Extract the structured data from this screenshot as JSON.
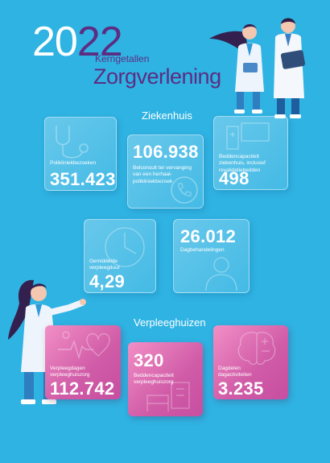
{
  "header": {
    "year_part1": "20",
    "year_part2": "22",
    "subtitle": "Kerngetallen",
    "title": "Zorgverlening"
  },
  "sections": {
    "hospital": "Ziekenhuis",
    "nursing": "Verpleeghuizen"
  },
  "hospital_cards": [
    {
      "label": "Polikliniekbezoeken",
      "value": "351.423",
      "icon": "stethoscope-icon"
    },
    {
      "label": "Belconsult ter vervanging van een herhaal-polikliniekbezoek",
      "value": "106.938",
      "icon": "phone-icon"
    },
    {
      "label": "Beddencapaciteit ziekenhuis, inclusief revalidatiebedden",
      "value": "498",
      "icon": "hospital-bed-icon"
    },
    {
      "label": "Gemiddelde verpleegduur",
      "value": "4,29",
      "icon": "clock-icon"
    },
    {
      "label": "Dagbehandelingen",
      "value": "26.012",
      "icon": "doctor-icon"
    }
  ],
  "nursing_cards": [
    {
      "label": "Verpleegdagen verpleeghuiszorg",
      "value": "112.742",
      "icon": "heartbeat-stethoscope-icon"
    },
    {
      "label": "Beddencapaciteit verpleeghuiszorg",
      "value": "320",
      "icon": "bed-icon"
    },
    {
      "label": "Dagdelen dagactiviteiten",
      "value": "3.235",
      "icon": "brain-icon"
    }
  ],
  "colors": {
    "background": "#2fb3e3",
    "accent_purple": "#5c2d82",
    "card_pink": "#d05ba7",
    "white": "#ffffff"
  }
}
